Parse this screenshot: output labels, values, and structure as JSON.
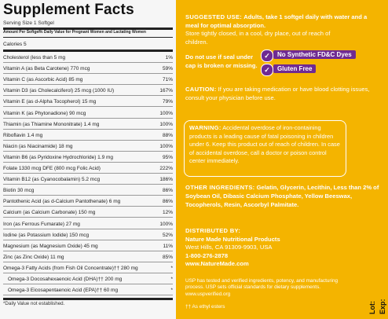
{
  "facts": {
    "title": "Supplement Facts",
    "serving": "Serving Size 1 Softgel",
    "col_amount": "Amount Per Softgel",
    "col_dv": "% Daily Value for Pregnant Women and Lactating Women",
    "calories": "Calories  5",
    "rows": [
      {
        "n": "Cholesterol  (less than 5 mg",
        "dv": "1%"
      },
      {
        "n": "Vitamin A (as Beta Carotene)  770 mcg",
        "dv": "59%"
      },
      {
        "n": "Vitamin C (as Ascorbic Acid)  85 mg",
        "dv": "71%"
      },
      {
        "n": "Vitamin D3 (as Cholecalciferol)  25 mcg (1000 IU)",
        "dv": "167%"
      },
      {
        "n": "Vitamin E (as d-Alpha Tocopherol)  15 mg",
        "dv": "79%"
      },
      {
        "n": "Vitamin K (as Phytonadione)  90 mcg",
        "dv": "100%"
      },
      {
        "n": "Thiamin (as Thiamine Mononitrate)  1.4 mg",
        "dv": "100%"
      },
      {
        "n": "Riboflavin  1.4 mg",
        "dv": "88%"
      },
      {
        "n": "Niacin (as Niacinamide)  18 mg",
        "dv": "100%"
      },
      {
        "n": "Vitamin B6 (as Pyridoxine Hydrochloride)  1.9 mg",
        "dv": "95%"
      },
      {
        "n": "Folate  1330 mcg DFE (800 mcg Folic Acid)",
        "dv": "222%"
      },
      {
        "n": "Vitamin B12 (as Cyanocobalamin)  5.2 mcg",
        "dv": "186%"
      },
      {
        "n": "Biotin  30 mcg",
        "dv": "86%"
      },
      {
        "n": "Pantothenic Acid (as d-Calcium Pantothenate)  6 mg",
        "dv": "86%"
      },
      {
        "n": "Calcium (as Calcium Carbonate)  150 mg",
        "dv": "12%"
      },
      {
        "n": "Iron (as Ferrous Fumarate)  27 mg",
        "dv": "100%"
      },
      {
        "n": "Iodine (as Potassium Iodide)  150 mcg",
        "dv": "52%"
      },
      {
        "n": "Magnesium (as Magnesium Oxide)  45 mg",
        "dv": "11%"
      },
      {
        "n": "Zinc (as Zinc Oxide)  11 mg",
        "dv": "85%"
      },
      {
        "n": "Omega-3 Fatty Acids (from Fish Oil Concentrate)††  280 mg",
        "dv": "*"
      },
      {
        "n": "Omega-3 Docosahexaenoic Acid (DHA)††  200 mg",
        "dv": "*",
        "sub": true
      },
      {
        "n": "Omega-3 Eicosapentaenoic Acid (EPA)††  60 mg",
        "dv": "*",
        "sub": true
      }
    ],
    "footnote": "*Daily Value not established."
  },
  "right": {
    "suggested_head": "SUGGESTED USE:",
    "suggested_body": "Adults, take 1 softgel daily with water and a meal for optimal absorption.",
    "storage": "Store tightly closed, in a cool, dry place, out of reach of children.",
    "seal": "Do not use if seal under cap is broken or missing.",
    "badges": [
      "No Synthetic FD&C Dyes",
      "Gluten Free"
    ],
    "caution_head": "CAUTION:",
    "caution_body": "If you are taking medication or have blood clotting issues, consult your physician before use.",
    "warning_head": "WARNING:",
    "warning_body": "Accidental overdose of iron-containing products is a leading cause of fatal poisoning in children under 6. Keep this product out of reach of children. In case of accidental overdose, call a doctor or poison control center immediately.",
    "ingredients_head": "OTHER INGREDIENTS:",
    "ingredients_body": "Gelatin, Glycerin, Lecithin, Less than 2% of Soybean Oil, Dibasic Calcium Phosphate, Yellow Beeswax, Tocopherols, Resin, Ascorbyl Palmitate.",
    "dist_head": "DISTRIBUTED BY:",
    "dist_name": "Nature Made Nutritional Products",
    "dist_addr": "West Hills, CA 91309-9903, USA",
    "dist_phone": "1-800-276-2878",
    "dist_web": "www.NatureMade.com",
    "usp": "USP has tested and verified ingredients, potency, and manufacturing process. USP sets official standards for dietary supplements. www.uspverified.org",
    "ethyl": "†† As ethyl esters",
    "lot": "Lot:",
    "exp": "Exp:"
  }
}
